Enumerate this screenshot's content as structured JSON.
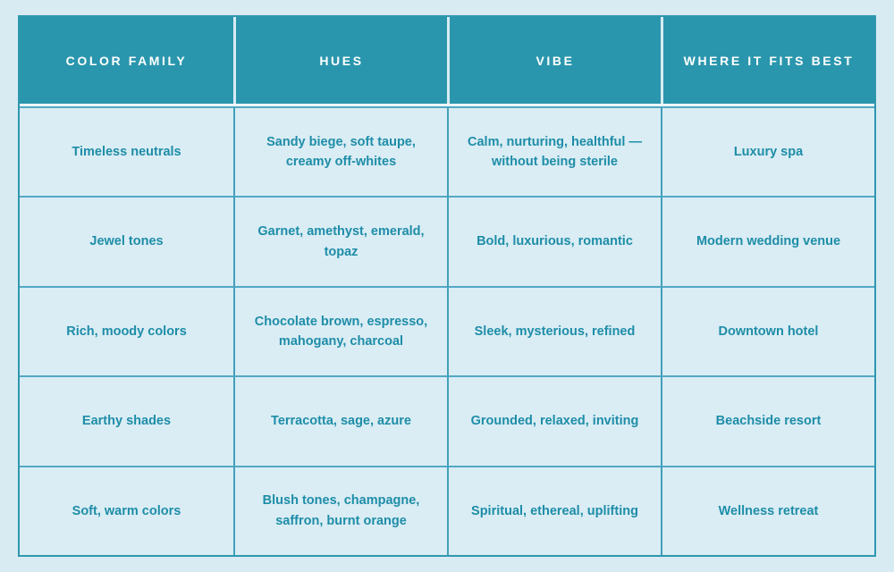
{
  "style": {
    "page_background": "#d9ebf2",
    "header_background": "#2a96ad",
    "header_text_color": "#ffffff",
    "cell_background": "#daedf4",
    "cell_text_color": "#1e8da8",
    "outer_border_color": "#2e98af",
    "grid_line_color": "#429fb9"
  },
  "chart_data": {
    "type": "table",
    "title": "",
    "columns": [
      "COLOR FAMILY",
      "HUES",
      "VIBE",
      "WHERE IT FITS BEST"
    ],
    "rows": [
      [
        "Timeless neutrals",
        "Sandy biege, soft taupe, creamy off-whites",
        "Calm, nurturing, healthful — without being sterile",
        "Luxury spa"
      ],
      [
        "Jewel tones",
        "Garnet, amethyst, emerald, topaz",
        "Bold, luxurious, romantic",
        "Modern wedding venue"
      ],
      [
        "Rich, moody colors",
        "Chocolate brown, espresso, mahogany, charcoal",
        "Sleek, mysterious, refined",
        "Downtown hotel"
      ],
      [
        "Earthy shades",
        "Terracotta, sage, azure",
        "Grounded, relaxed, inviting",
        "Beachside resort"
      ],
      [
        "Soft, warm colors",
        "Blush tones, champagne, saffron, burnt orange",
        "Spiritual, ethereal, uplifting",
        "Wellness retreat"
      ]
    ]
  }
}
